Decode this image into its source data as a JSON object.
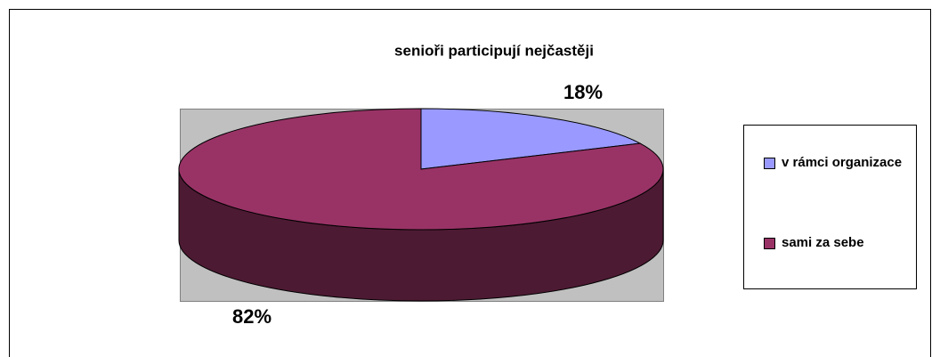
{
  "chart_data": {
    "type": "pie3d",
    "title": "senioři participují nejčastěji",
    "categories": [
      "v rámci organizace",
      "sami za sebe"
    ],
    "values": [
      18,
      82
    ],
    "value_labels": [
      "18%",
      "82%"
    ],
    "colors": [
      "#9999ff",
      "#993366"
    ],
    "legend": "right"
  }
}
